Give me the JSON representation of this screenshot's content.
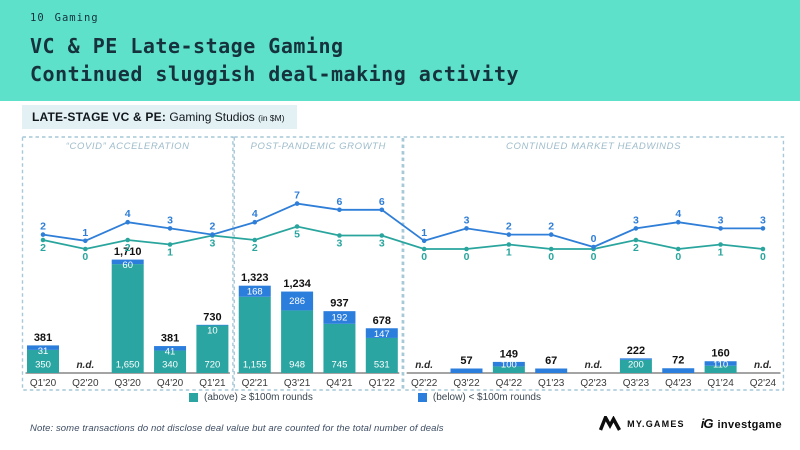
{
  "page": {
    "page_number": "10",
    "section": "Gaming",
    "title_line1": "VC & PE Late-stage Gaming",
    "title_line2": "Continued sluggish deal-making activity"
  },
  "chart_data": {
    "type": "stacked-bar+line",
    "title_bold": "LATE-STAGE VC & PE:",
    "title_regular": "Gaming Studios",
    "title_unit": "(in $M)",
    "unit": "$M",
    "categories": [
      "Q1'20",
      "Q2'20",
      "Q3'20",
      "Q4'20",
      "Q1'21",
      "Q2'21",
      "Q3'21",
      "Q4'21",
      "Q1'22",
      "Q2'22",
      "Q3'22",
      "Q4'22",
      "Q1'23",
      "Q2'23",
      "Q3'23",
      "Q4'23",
      "Q1'24",
      "Q2'24"
    ],
    "sections": [
      {
        "label": "“COVID” ACCELERATION",
        "from": "Q1'20",
        "to": "Q1'21"
      },
      {
        "label": "POST-PANDEMIC GROWTH",
        "from": "Q2'21",
        "to": "Q1'22"
      },
      {
        "label": "CONTINUED MARKET HEADWINDS",
        "from": "Q2'22",
        "to": "Q2'24"
      }
    ],
    "bars": [
      {
        "cat": "Q1'20",
        "total": "381",
        "above": 350,
        "below": 31,
        "above_label": "350",
        "below_label": "31",
        "nd": false
      },
      {
        "cat": "Q2'20",
        "total": "n.d.",
        "above": 0,
        "below": 0,
        "above_label": null,
        "below_label": null,
        "nd": true
      },
      {
        "cat": "Q3'20",
        "total": "1,710",
        "above": 1650,
        "below": 60,
        "above_label": "1,650",
        "below_label": "60",
        "nd": false
      },
      {
        "cat": "Q4'20",
        "total": "381",
        "above": 340,
        "below": 41,
        "above_label": "340",
        "below_label": "41",
        "nd": false
      },
      {
        "cat": "Q1'21",
        "total": "730",
        "above": 720,
        "below": 10,
        "above_label": "720",
        "below_label": "10",
        "nd": false
      },
      {
        "cat": "Q2'21",
        "total": "1,323",
        "above": 1155,
        "below": 168,
        "above_label": "1,155",
        "below_label": "168",
        "nd": false
      },
      {
        "cat": "Q3'21",
        "total": "1,234",
        "above": 948,
        "below": 286,
        "above_label": "948",
        "below_label": "286",
        "nd": false
      },
      {
        "cat": "Q4'21",
        "total": "937",
        "above": 745,
        "below": 192,
        "above_label": "745",
        "below_label": "192",
        "nd": false
      },
      {
        "cat": "Q1'22",
        "total": "678",
        "above": 531,
        "below": 147,
        "above_label": "531",
        "below_label": "147",
        "nd": false
      },
      {
        "cat": "Q2'22",
        "total": "n.d.",
        "above": 0,
        "below": 0,
        "above_label": null,
        "below_label": null,
        "nd": true
      },
      {
        "cat": "Q3'22",
        "total": "57",
        "above": 0,
        "below": 57,
        "above_label": null,
        "below_label": null,
        "nd": false
      },
      {
        "cat": "Q4'22",
        "total": "149",
        "above": 100,
        "below": 49,
        "above_label": "100",
        "below_label": null,
        "nd": false
      },
      {
        "cat": "Q1'23",
        "total": "67",
        "above": 0,
        "below": 67,
        "above_label": null,
        "below_label": null,
        "nd": false
      },
      {
        "cat": "Q2'23",
        "total": "n.d.",
        "above": 0,
        "below": 0,
        "above_label": null,
        "below_label": null,
        "nd": true
      },
      {
        "cat": "Q3'23",
        "total": "222",
        "above": 200,
        "below": 22,
        "above_label": "200",
        "below_label": null,
        "nd": false
      },
      {
        "cat": "Q4'23",
        "total": "72",
        "above": 0,
        "below": 72,
        "above_label": null,
        "below_label": null,
        "nd": false
      },
      {
        "cat": "Q1'24",
        "total": "160",
        "above": 110,
        "below": 50,
        "above_label": "110",
        "below_label": null,
        "nd": false
      },
      {
        "cat": "Q2'24",
        "total": "n.d.",
        "above": 0,
        "below": 0,
        "above_label": null,
        "below_label": null,
        "nd": true
      }
    ],
    "lines": [
      {
        "name": "count of ≥ $100m rounds",
        "color": "#2AA59E",
        "values": [
          2,
          0,
          2,
          1,
          3,
          2,
          5,
          3,
          3,
          0,
          0,
          1,
          0,
          0,
          2,
          0,
          1,
          0
        ]
      },
      {
        "name": "count of < $100m rounds",
        "color": "#2F7ED8",
        "values": [
          2,
          1,
          4,
          3,
          2,
          4,
          7,
          6,
          6,
          1,
          3,
          2,
          2,
          0,
          3,
          4,
          3,
          3
        ]
      }
    ],
    "legend": [
      {
        "label": "(above) ≥ $100m rounds",
        "color": "#2AA5A1"
      },
      {
        "label": "(below) < $100m rounds",
        "color": "#2C7EDD"
      }
    ],
    "colors": {
      "bar_above": "#2AA5A1",
      "bar_below": "#2C7EDD",
      "line_above": "#2AA59E",
      "line_below": "#2F7ED8",
      "section_border": "#A6C8D7",
      "section_label": "#9EBCCB",
      "axis": "#4a4a4a",
      "header_band": "#5EE1CB"
    }
  },
  "footnote": "Note: some transactions do not disclose deal value but are counted for the total number of deals",
  "logos": {
    "mygames": "MY.GAMES",
    "investgame_short": "iG",
    "investgame": "investgame"
  }
}
